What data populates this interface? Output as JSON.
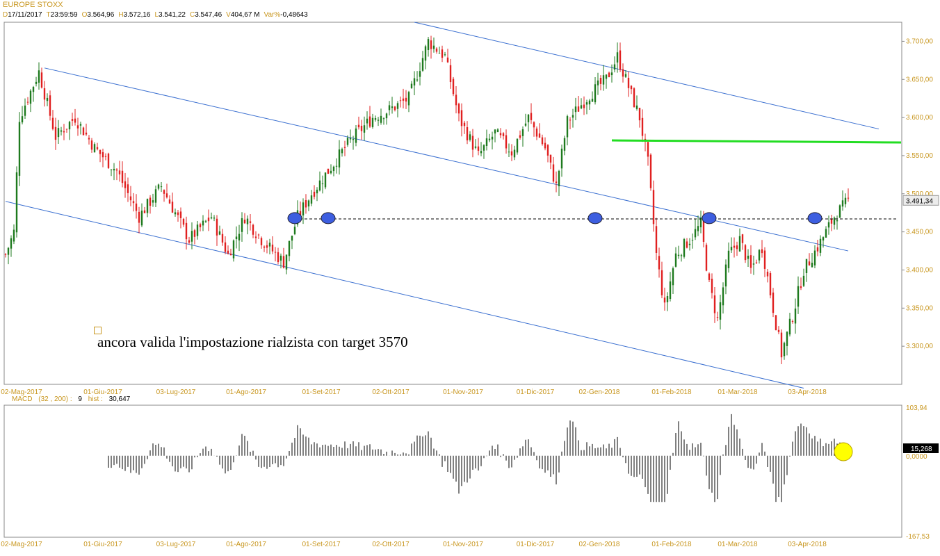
{
  "header": {
    "title": "EUROPE STOXX",
    "fields": [
      {
        "key": "D",
        "value": "17/11/2017"
      },
      {
        "key": "T",
        "value": "23:59:59"
      },
      {
        "key": "O",
        "value": "3.564,96"
      },
      {
        "key": "H",
        "value": "3.572,16"
      },
      {
        "key": "L",
        "value": "3.541,22"
      },
      {
        "key": "C",
        "value": "3.547,46"
      },
      {
        "key": "V",
        "value": "404,67 M"
      },
      {
        "key": "Var%",
        "value": "-0,48643"
      }
    ]
  },
  "annotation": "ancora valida l'impostazione rialzista con target 3570",
  "colors": {
    "up": "#1e7a1e",
    "down": "#e02020",
    "channel": "#3a6fd0",
    "target_line": "#22dd22",
    "marker": "#3d5ee0",
    "highlight": "#ffff00",
    "label": "#c8961e"
  },
  "chart_data": [
    {
      "type": "candlestick",
      "x_labels": [
        "02-Mag-2017",
        "01-Giu-2017",
        "03-Lug-2017",
        "01-Ago-2017",
        "01-Set-2017",
        "02-Ott-2017",
        "01-Nov-2017",
        "01-Dic-2017",
        "02-Gen-2018",
        "01-Feb-2018",
        "01-Mar-2018",
        "03-Apr-2018"
      ],
      "y_ticks": [
        "3.300,00",
        "3.350,00",
        "3.400,00",
        "3.450,00",
        "3.500,00",
        "3.550,00",
        "3.600,00",
        "3.650,00",
        "3.700,00"
      ],
      "ylim": [
        3250,
        3725
      ],
      "last_price": "3.491,34",
      "segments": [
        [
          0,
          3420
        ],
        [
          3,
          3450
        ],
        [
          5,
          3600
        ],
        [
          12,
          3660
        ],
        [
          18,
          3575
        ],
        [
          25,
          3600
        ],
        [
          32,
          3560
        ],
        [
          40,
          3530
        ],
        [
          48,
          3470
        ],
        [
          56,
          3510
        ],
        [
          66,
          3440
        ],
        [
          74,
          3470
        ],
        [
          80,
          3420
        ],
        [
          86,
          3470
        ],
        [
          92,
          3440
        ],
        [
          100,
          3410
        ],
        [
          105,
          3470
        ],
        [
          110,
          3500
        ],
        [
          118,
          3540
        ],
        [
          124,
          3570
        ],
        [
          132,
          3600
        ],
        [
          138,
          3610
        ],
        [
          145,
          3625
        ],
        [
          152,
          3700
        ],
        [
          158,
          3680
        ],
        [
          163,
          3600
        ],
        [
          170,
          3550
        ],
        [
          176,
          3580
        ],
        [
          182,
          3555
        ],
        [
          188,
          3600
        ],
        [
          194,
          3560
        ],
        [
          198,
          3510
        ],
        [
          202,
          3595
        ],
        [
          210,
          3630
        ],
        [
          216,
          3650
        ],
        [
          220,
          3680
        ],
        [
          224,
          3640
        ],
        [
          228,
          3600
        ],
        [
          231,
          3540
        ],
        [
          234,
          3420
        ],
        [
          237,
          3350
        ],
        [
          241,
          3420
        ],
        [
          246,
          3440
        ],
        [
          250,
          3460
        ],
        [
          253,
          3380
        ],
        [
          256,
          3335
        ],
        [
          260,
          3420
        ],
        [
          264,
          3440
        ],
        [
          268,
          3400
        ],
        [
          272,
          3430
        ],
        [
          276,
          3350
        ],
        [
          279,
          3290
        ],
        [
          283,
          3340
        ],
        [
          287,
          3400
        ],
        [
          292,
          3430
        ],
        [
          298,
          3470
        ],
        [
          303,
          3491
        ]
      ],
      "channels": [
        {
          "name": "",
          "x": [
            0,
            287
          ],
          "y": [
            3490,
            3245
          ]
        },
        {
          "name": "",
          "x": [
            14,
            303
          ],
          "y": [
            3665,
            3425
          ]
        },
        {
          "name": "",
          "x": [
            147,
            314
          ],
          "y": [
            3725,
            3585
          ]
        }
      ],
      "support_level": 3467,
      "target_level": 3570,
      "markers": [
        [
          104,
          3468
        ],
        [
          116,
          3468
        ],
        [
          212,
          3468
        ],
        [
          253,
          3468
        ],
        [
          291,
          3468
        ]
      ]
    },
    {
      "type": "bar",
      "indicator": "MACD",
      "label": "MACD",
      "params": "(32 , 200) :",
      "signal": "9",
      "hist_label": "hist :",
      "hist_value": "30,647",
      "ymax_label": "103,94",
      "zero_label": "0,0000",
      "ymin_label": "-167,53",
      "current_label": "15,268",
      "ylim": [
        -167.53,
        103.94
      ]
    }
  ]
}
